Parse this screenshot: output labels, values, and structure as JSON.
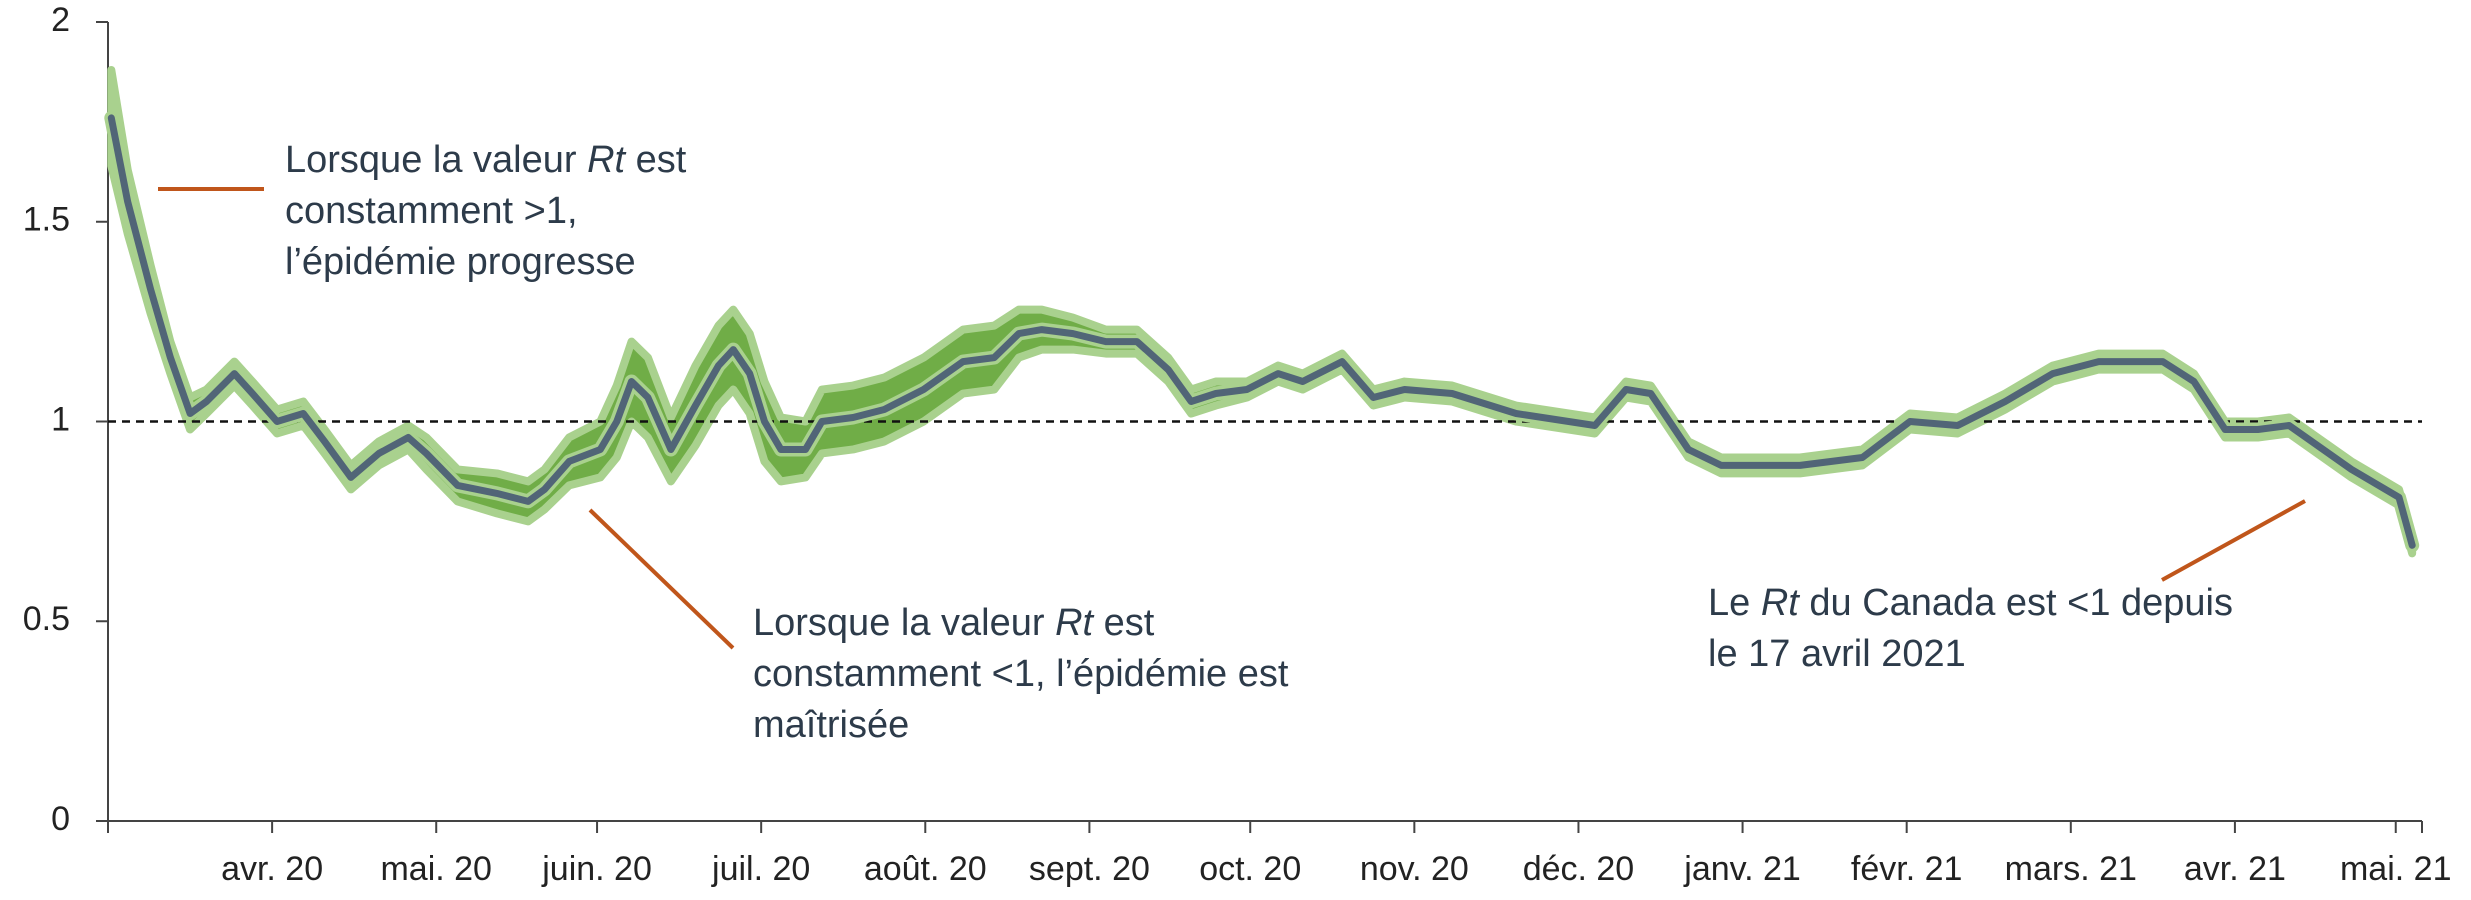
{
  "chart_data": {
    "type": "line",
    "x": [
      0.02,
      0.12,
      0.26,
      0.38,
      0.5,
      0.6,
      0.77,
      0.88,
      1.03,
      1.19,
      1.32,
      1.48,
      1.65,
      1.83,
      1.94,
      2.13,
      2.37,
      2.56,
      2.66,
      2.81,
      3.0,
      3.1,
      3.19,
      3.29,
      3.43,
      3.58,
      3.72,
      3.81,
      3.91,
      4.0,
      4.1,
      4.25,
      4.35,
      4.54,
      4.73,
      4.97,
      5.21,
      5.4,
      5.55,
      5.69,
      5.88,
      6.08,
      6.27,
      6.46,
      6.6,
      6.75,
      6.94,
      7.13,
      7.28,
      7.52,
      7.71,
      7.9,
      8.19,
      8.58,
      9.06,
      9.25,
      9.4,
      9.63,
      9.83,
      10.31,
      10.69,
      10.98,
      11.27,
      11.56,
      11.85,
      12.13,
      12.52,
      12.71,
      12.9,
      13.1,
      13.29,
      13.67,
      13.96,
      14.04
    ],
    "values": [
      1.76,
      1.55,
      1.33,
      1.16,
      1.02,
      1.05,
      1.12,
      1.07,
      1.0,
      1.02,
      0.95,
      0.86,
      0.92,
      0.96,
      0.92,
      0.84,
      0.82,
      0.8,
      0.83,
      0.9,
      0.93,
      1.0,
      1.1,
      1.06,
      0.93,
      1.04,
      1.14,
      1.18,
      1.12,
      1.0,
      0.93,
      0.93,
      1.0,
      1.01,
      1.03,
      1.08,
      1.15,
      1.16,
      1.22,
      1.23,
      1.22,
      1.2,
      1.2,
      1.13,
      1.05,
      1.07,
      1.08,
      1.12,
      1.1,
      1.15,
      1.06,
      1.08,
      1.07,
      1.02,
      0.99,
      1.08,
      1.07,
      0.93,
      0.89,
      0.89,
      0.91,
      1.0,
      0.99,
      1.05,
      1.12,
      1.15,
      1.15,
      1.1,
      0.98,
      0.98,
      0.99,
      0.88,
      0.81,
      0.69
    ],
    "lower": [
      1.64,
      1.47,
      1.27,
      1.12,
      0.98,
      1.02,
      1.09,
      1.04,
      0.97,
      0.99,
      0.92,
      0.83,
      0.89,
      0.93,
      0.88,
      0.8,
      0.77,
      0.75,
      0.78,
      0.84,
      0.86,
      0.91,
      1.0,
      0.96,
      0.85,
      0.94,
      1.04,
      1.08,
      1.02,
      0.9,
      0.85,
      0.86,
      0.92,
      0.93,
      0.95,
      1.0,
      1.07,
      1.08,
      1.16,
      1.18,
      1.18,
      1.17,
      1.17,
      1.1,
      1.02,
      1.04,
      1.06,
      1.1,
      1.08,
      1.13,
      1.04,
      1.06,
      1.05,
      1.0,
      0.97,
      1.06,
      1.05,
      0.91,
      0.87,
      0.87,
      0.89,
      0.98,
      0.97,
      1.03,
      1.1,
      1.13,
      1.13,
      1.08,
      0.96,
      0.96,
      0.97,
      0.86,
      0.79,
      0.67
    ],
    "upper": [
      1.88,
      1.63,
      1.39,
      1.2,
      1.06,
      1.08,
      1.15,
      1.1,
      1.03,
      1.05,
      0.98,
      0.89,
      0.95,
      0.99,
      0.96,
      0.88,
      0.87,
      0.85,
      0.88,
      0.96,
      1.0,
      1.09,
      1.2,
      1.16,
      1.01,
      1.14,
      1.24,
      1.28,
      1.22,
      1.1,
      1.01,
      1.0,
      1.08,
      1.09,
      1.11,
      1.16,
      1.23,
      1.24,
      1.28,
      1.28,
      1.26,
      1.23,
      1.23,
      1.16,
      1.08,
      1.1,
      1.1,
      1.14,
      1.12,
      1.17,
      1.08,
      1.1,
      1.09,
      1.04,
      1.01,
      1.1,
      1.09,
      0.95,
      0.91,
      0.91,
      0.93,
      1.02,
      1.01,
      1.07,
      1.14,
      1.17,
      1.17,
      1.12,
      1.0,
      1.0,
      1.01,
      0.9,
      0.83,
      0.71
    ],
    "color": "#516577",
    "band_color": "#70ad47",
    "band_edge_color": "#a9d18e",
    "xlim": [
      0,
      14.1
    ],
    "xticks": [
      {
        "value": 1.0,
        "label": "avr. 20"
      },
      {
        "value": 2.0,
        "label": "mai. 20"
      },
      {
        "value": 2.98,
        "label": "juin. 20"
      },
      {
        "value": 3.98,
        "label": "juil. 20"
      },
      {
        "value": 4.98,
        "label": "août. 20"
      },
      {
        "value": 5.98,
        "label": "sept. 20"
      },
      {
        "value": 6.96,
        "label": "oct. 20"
      },
      {
        "value": 7.96,
        "label": "nov. 20"
      },
      {
        "value": 8.96,
        "label": "déc. 20"
      },
      {
        "value": 9.96,
        "label": "janv. 21"
      },
      {
        "value": 10.96,
        "label": "févr. 21"
      },
      {
        "value": 11.96,
        "label": "mars. 21"
      },
      {
        "value": 12.96,
        "label": "avr. 21"
      },
      {
        "value": 13.94,
        "label": "mai. 21"
      }
    ],
    "ylim": [
      0,
      2
    ],
    "yticks": [
      0,
      0.5,
      1,
      1.5,
      2
    ],
    "reference_line": 1,
    "annotations": [
      {
        "lines": [
          [
            {
              "text": "Lorsque la valeur "
            },
            {
              "text": "Rt",
              "italic": true
            },
            {
              "text": " est"
            }
          ],
          [
            {
              "text": "constamment >1,"
            }
          ],
          [
            {
              "text": "l’épidémie progresse"
            }
          ]
        ]
      },
      {
        "lines": [
          [
            {
              "text": "Lorsque la valeur "
            },
            {
              "text": "Rt",
              "italic": true
            },
            {
              "text": " est"
            }
          ],
          [
            {
              "text": "constamment <1, l’épidémie est"
            }
          ],
          [
            {
              "text": "maîtrisée"
            }
          ]
        ]
      },
      {
        "lines": [
          [
            {
              "text": "Le "
            },
            {
              "text": "Rt",
              "italic": true
            },
            {
              "text": " du Canada est <1 depuis"
            }
          ],
          [
            {
              "text": "le 17 avril 2021"
            }
          ]
        ]
      }
    ]
  }
}
